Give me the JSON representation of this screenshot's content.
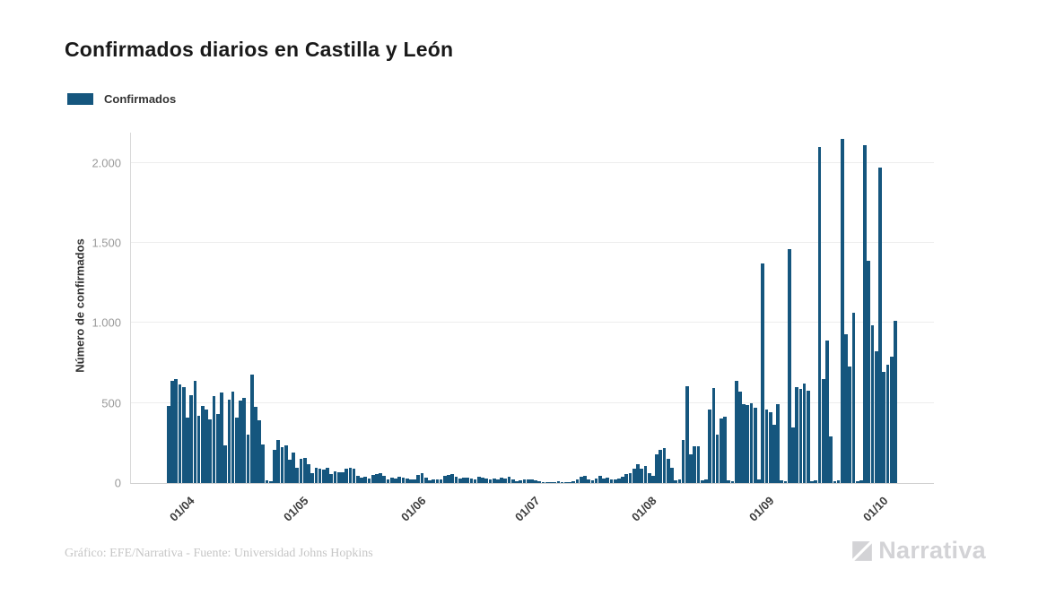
{
  "title": "Confirmados diarios en Castilla y León",
  "legend": {
    "label": "Confirmados",
    "swatch_color": "#15567E"
  },
  "y_axis": {
    "label": "Número de confirmados",
    "max": 2190,
    "ticks": [
      {
        "value": 0,
        "label": "0"
      },
      {
        "value": 500,
        "label": "500"
      },
      {
        "value": 1000,
        "label": "1.000"
      },
      {
        "value": 1500,
        "label": "1.500"
      },
      {
        "value": 2000,
        "label": "2.000"
      }
    ]
  },
  "x_axis": {
    "ticks": [
      {
        "label": "01/04",
        "day_index": 5
      },
      {
        "label": "01/05",
        "day_index": 35
      },
      {
        "label": "01/06",
        "day_index": 66
      },
      {
        "label": "01/07",
        "day_index": 96
      },
      {
        "label": "01/08",
        "day_index": 127
      },
      {
        "label": "01/09",
        "day_index": 158
      },
      {
        "label": "01/10",
        "day_index": 188
      }
    ]
  },
  "chart_data": {
    "type": "bar",
    "title": "Confirmados diarios en Castilla y León",
    "xlabel": "",
    "ylabel": "Número de confirmados",
    "ylim": [
      0,
      2190
    ],
    "grid": true,
    "legend_position": "top-left",
    "x": {
      "unit": "day",
      "start_label": "27/03",
      "end_label": "05/10",
      "note": "daily values, values estimated from pixel heights"
    },
    "series": [
      {
        "name": "Confirmados",
        "color": "#15567E",
        "values": [
          480,
          640,
          650,
          615,
          600,
          410,
          550,
          640,
          420,
          480,
          460,
          400,
          545,
          430,
          565,
          235,
          520,
          570,
          410,
          515,
          530,
          300,
          680,
          475,
          390,
          240,
          15,
          10,
          210,
          270,
          225,
          235,
          145,
          190,
          95,
          150,
          155,
          115,
          60,
          95,
          90,
          85,
          95,
          55,
          75,
          70,
          65,
          90,
          95,
          90,
          45,
          35,
          40,
          30,
          50,
          55,
          60,
          45,
          25,
          35,
          30,
          40,
          35,
          30,
          25,
          20,
          50,
          60,
          35,
          15,
          20,
          25,
          20,
          45,
          50,
          55,
          40,
          30,
          35,
          35,
          30,
          25,
          40,
          35,
          30,
          25,
          30,
          20,
          35,
          30,
          40,
          25,
          10,
          15,
          20,
          25,
          20,
          15,
          10,
          5,
          8,
          5,
          5,
          10,
          5,
          5,
          8,
          12,
          25,
          40,
          45,
          20,
          15,
          30,
          45,
          30,
          35,
          25,
          20,
          30,
          40,
          55,
          60,
          90,
          120,
          90,
          105,
          60,
          45,
          180,
          208,
          220,
          150,
          95,
          15,
          20,
          270,
          605,
          177,
          228,
          232,
          15,
          20,
          461,
          595,
          302,
          405,
          415,
          15,
          10,
          638,
          573,
          494,
          485,
          498,
          470,
          20,
          1370,
          457,
          445,
          364,
          494,
          15,
          10,
          1460,
          349,
          601,
          586,
          620,
          575,
          10,
          15,
          2100,
          650,
          890,
          290,
          10,
          15,
          2150,
          930,
          730,
          1065,
          10,
          15,
          2110,
          1390,
          985,
          825,
          1970,
          695,
          740,
          790,
          1015
        ]
      }
    ]
  },
  "footer": {
    "credit": "Gráfico: EFE/Narrativa - Fuente: Universidad Johns Hopkins",
    "brand": "Narrativa"
  }
}
